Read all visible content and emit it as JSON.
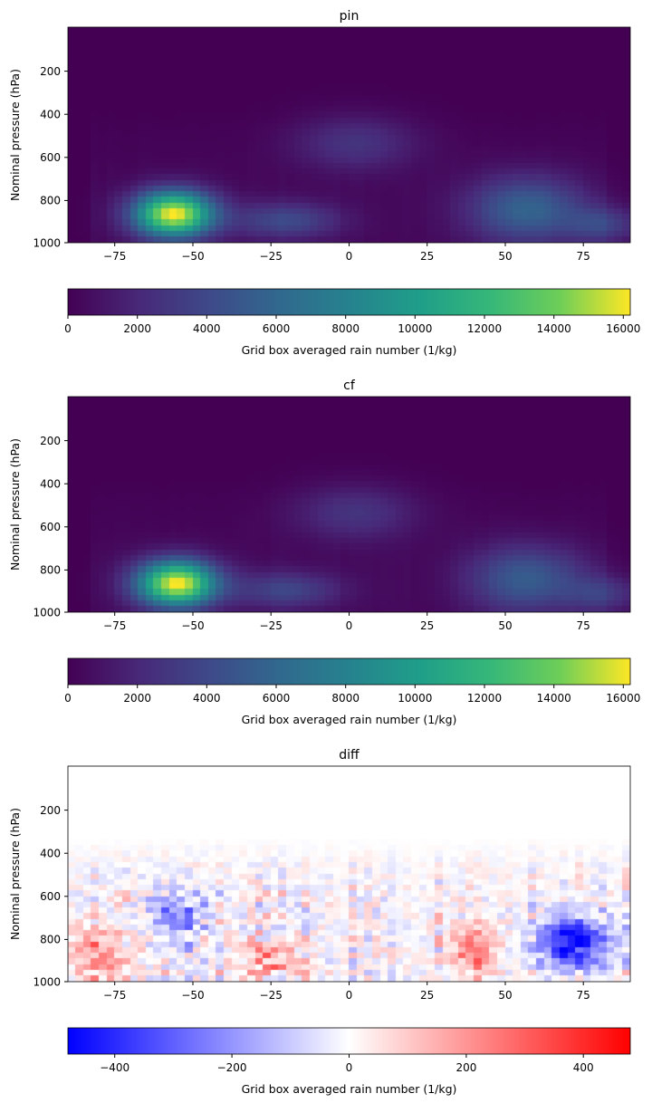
{
  "chart_data": [
    {
      "type": "heatmap",
      "title": "pin",
      "ylabel": "Nominal pressure (hPa)",
      "xlabel": "",
      "xlim": [
        -90,
        90
      ],
      "ylim": [
        1000,
        0
      ],
      "xticks": [
        -75,
        -50,
        -25,
        0,
        25,
        50,
        75
      ],
      "yticks": [
        200,
        400,
        600,
        800,
        1000
      ],
      "colormap": "viridis",
      "colorbar": {
        "label": "Grid box averaged rain number (1/kg)",
        "min": 0,
        "max": 16200,
        "ticks": [
          0,
          2000,
          4000,
          6000,
          8000,
          10000,
          12000,
          14000,
          16000
        ],
        "orientation": "horizontal"
      },
      "features": [
        {
          "lat": -56,
          "pressure": 870,
          "value": 16000,
          "lat_spread": 9,
          "p_spread": 75
        },
        {
          "lat": 57,
          "pressure": 850,
          "value": 5500,
          "lat_spread": 13,
          "p_spread": 110
        },
        {
          "lat": -20,
          "pressure": 900,
          "value": 3800,
          "lat_spread": 12,
          "p_spread": 60
        },
        {
          "lat": 2,
          "pressure": 540,
          "value": 2600,
          "lat_spread": 14,
          "p_spread": 90
        },
        {
          "lat": 82,
          "pressure": 920,
          "value": 3300,
          "lat_spread": 8,
          "p_spread": 60
        }
      ]
    },
    {
      "type": "heatmap",
      "title": "cf",
      "ylabel": "Nominal pressure (hPa)",
      "xlabel": "",
      "xlim": [
        -90,
        90
      ],
      "ylim": [
        1000,
        0
      ],
      "xticks": [
        -75,
        -50,
        -25,
        0,
        25,
        50,
        75
      ],
      "yticks": [
        200,
        400,
        600,
        800,
        1000
      ],
      "colormap": "viridis",
      "colorbar": {
        "label": "Grid box averaged rain number (1/kg)",
        "min": 0,
        "max": 16200,
        "ticks": [
          0,
          2000,
          4000,
          6000,
          8000,
          10000,
          12000,
          14000,
          16000
        ],
        "orientation": "horizontal"
      },
      "features": [
        {
          "lat": -55,
          "pressure": 870,
          "value": 16000,
          "lat_spread": 9,
          "p_spread": 75
        },
        {
          "lat": 57,
          "pressure": 850,
          "value": 5000,
          "lat_spread": 13,
          "p_spread": 110
        },
        {
          "lat": -20,
          "pressure": 900,
          "value": 3500,
          "lat_spread": 12,
          "p_spread": 60
        },
        {
          "lat": 2,
          "pressure": 540,
          "value": 2600,
          "lat_spread": 14,
          "p_spread": 90
        },
        {
          "lat": 82,
          "pressure": 920,
          "value": 2800,
          "lat_spread": 8,
          "p_spread": 60
        }
      ]
    },
    {
      "type": "heatmap",
      "title": "diff",
      "ylabel": "Nominal pressure (hPa)",
      "xlabel": "",
      "xlim": [
        -90,
        90
      ],
      "ylim": [
        1000,
        0
      ],
      "xticks": [
        -75,
        -50,
        -25,
        0,
        25,
        50,
        75
      ],
      "yticks": [
        200,
        400,
        600,
        800,
        1000
      ],
      "colormap": "bwr",
      "colorbar": {
        "label": "Grid box averaged rain number (1/kg)",
        "min": -480,
        "max": 480,
        "ticks": [
          -400,
          -200,
          0,
          200,
          400
        ],
        "orientation": "horizontal"
      },
      "features": [
        {
          "lat": 72,
          "pressure": 820,
          "value": -480,
          "lat_spread": 8,
          "p_spread": 80
        },
        {
          "lat": -55,
          "pressure": 700,
          "value": -230,
          "lat_spread": 6,
          "p_spread": 90
        },
        {
          "lat": -80,
          "pressure": 880,
          "value": 220,
          "lat_spread": 6,
          "p_spread": 90
        },
        {
          "lat": -25,
          "pressure": 900,
          "value": 200,
          "lat_spread": 7,
          "p_spread": 70
        },
        {
          "lat": 40,
          "pressure": 870,
          "value": 240,
          "lat_spread": 5,
          "p_spread": 80
        }
      ]
    }
  ]
}
